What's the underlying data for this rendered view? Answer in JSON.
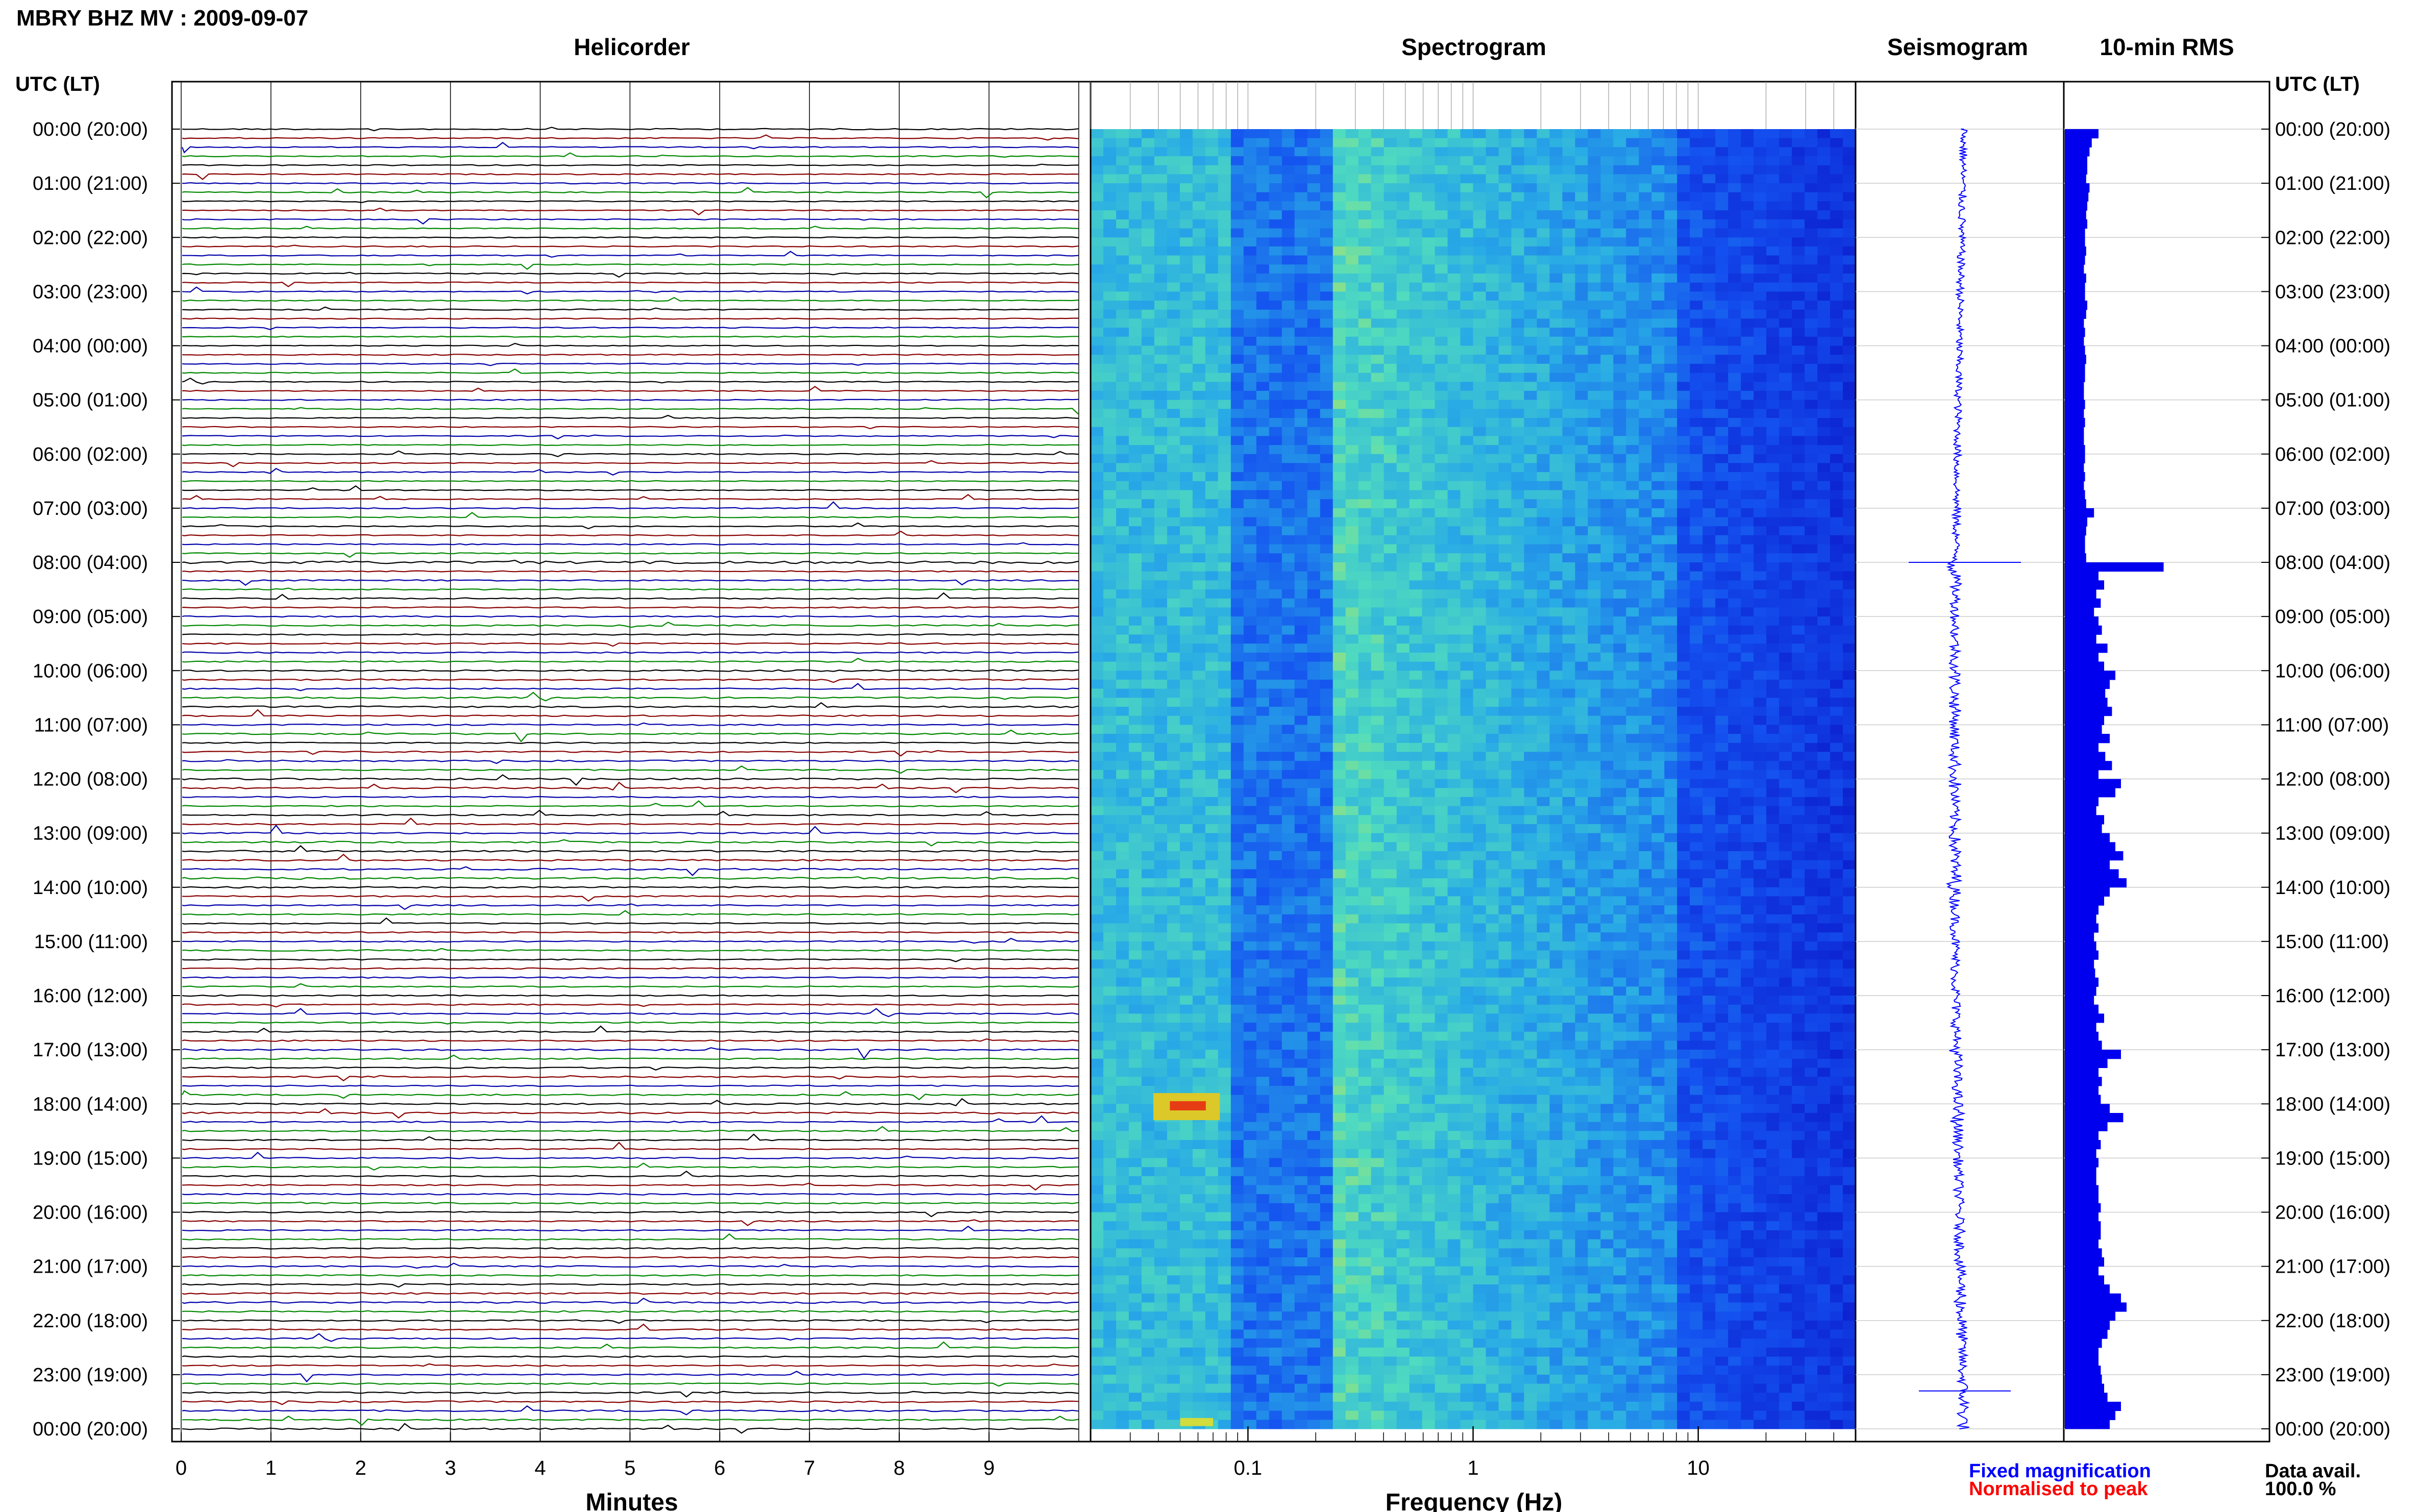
{
  "header": {
    "title": "MBRY BHZ MV : 2009-09-07",
    "utc_label_left": "UTC (LT)",
    "utc_label_right": "UTC (LT)"
  },
  "panels": {
    "helicorder": "Helicorder",
    "spectrogram": "Spectrogram",
    "seismogram": "Seismogram",
    "rms": "10-min RMS"
  },
  "axes": {
    "minutes_label": "Minutes",
    "frequency_label": "Frequency (Hz)",
    "minute_ticks": [
      "0",
      "1",
      "2",
      "3",
      "4",
      "5",
      "6",
      "7",
      "8",
      "9"
    ],
    "frequency_ticks": [
      "0.1",
      "1",
      "10"
    ],
    "time_ticks": [
      "00:00 (20:00)",
      "01:00 (21:00)",
      "02:00 (22:00)",
      "03:00 (23:00)",
      "04:00 (00:00)",
      "05:00 (01:00)",
      "06:00 (02:00)",
      "07:00 (03:00)",
      "08:00 (04:00)",
      "09:00 (05:00)",
      "10:00 (06:00)",
      "11:00 (07:00)",
      "12:00 (08:00)",
      "13:00 (09:00)",
      "14:00 (10:00)",
      "15:00 (11:00)",
      "16:00 (12:00)",
      "17:00 (13:00)",
      "18:00 (14:00)",
      "19:00 (15:00)",
      "20:00 (16:00)",
      "21:00 (17:00)",
      "22:00 (18:00)",
      "23:00 (19:00)",
      "00:00 (20:00)"
    ]
  },
  "legend": {
    "fixed": "Fixed magnification",
    "normalised": "Normalised to peak",
    "fixed_color": "#0000ff",
    "normalised_color": "#ff0000"
  },
  "availability": {
    "label": "Data avail.",
    "value": "100.0 %"
  },
  "colors": {
    "trace_cycle": [
      "#000000",
      "#880000",
      "#0000aa",
      "#008800"
    ],
    "rms_bar": "#0000ee",
    "seismogram": "#0000ff"
  },
  "chart_data": {
    "type": "bar",
    "title": "10-min RMS",
    "x_hours_utc": [
      0,
      0.167,
      0.333,
      0.5,
      0.667,
      0.833,
      1,
      1.167,
      1.333,
      1.5,
      1.667,
      1.833,
      2,
      2.167,
      2.333,
      2.5,
      2.667,
      2.833,
      3,
      3.167,
      3.333,
      3.5,
      3.667,
      3.833,
      4,
      4.167,
      4.333,
      4.5,
      4.667,
      4.833,
      5,
      5.167,
      5.333,
      5.5,
      5.667,
      5.833,
      6,
      6.167,
      6.333,
      6.5,
      6.667,
      6.833,
      7,
      7.167,
      7.333,
      7.5,
      7.667,
      7.833,
      8,
      8.167,
      8.333,
      8.5,
      8.667,
      8.833,
      9,
      9.167,
      9.333,
      9.5,
      9.667,
      9.833,
      10,
      10.167,
      10.333,
      10.5,
      10.667,
      10.833,
      11,
      11.167,
      11.333,
      11.5,
      11.667,
      11.833,
      12,
      12.167,
      12.333,
      12.5,
      12.667,
      12.833,
      13,
      13.167,
      13.333,
      13.5,
      13.667,
      13.833,
      14,
      14.167,
      14.333,
      14.5,
      14.667,
      14.833,
      15,
      15.167,
      15.333,
      15.5,
      15.667,
      15.833,
      16,
      16.167,
      16.333,
      16.5,
      16.667,
      16.833,
      17,
      17.167,
      17.333,
      17.5,
      17.667,
      17.833,
      18,
      18.167,
      18.333,
      18.5,
      18.667,
      18.833,
      19,
      19.167,
      19.333,
      19.5,
      19.667,
      19.833,
      20,
      20.167,
      20.333,
      20.5,
      20.667,
      20.833,
      21,
      21.167,
      21.333,
      21.5,
      21.667,
      21.833,
      22,
      22.167,
      22.333,
      22.5,
      22.667,
      22.833,
      23,
      23.167,
      23.333,
      23.5,
      23.667,
      23.833
    ],
    "values": [
      0.3,
      0.24,
      0.22,
      0.2,
      0.2,
      0.19,
      0.22,
      0.21,
      0.2,
      0.19,
      0.2,
      0.18,
      0.18,
      0.19,
      0.18,
      0.17,
      0.19,
      0.18,
      0.18,
      0.2,
      0.19,
      0.17,
      0.18,
      0.17,
      0.18,
      0.19,
      0.18,
      0.18,
      0.17,
      0.17,
      0.18,
      0.17,
      0.18,
      0.17,
      0.17,
      0.18,
      0.18,
      0.17,
      0.18,
      0.17,
      0.18,
      0.19,
      0.26,
      0.2,
      0.19,
      0.18,
      0.18,
      0.19,
      0.88,
      0.3,
      0.35,
      0.28,
      0.32,
      0.26,
      0.3,
      0.33,
      0.28,
      0.38,
      0.3,
      0.35,
      0.45,
      0.4,
      0.36,
      0.38,
      0.42,
      0.35,
      0.33,
      0.4,
      0.3,
      0.36,
      0.42,
      0.3,
      0.5,
      0.45,
      0.3,
      0.28,
      0.35,
      0.33,
      0.4,
      0.45,
      0.52,
      0.4,
      0.48,
      0.55,
      0.4,
      0.35,
      0.3,
      0.28,
      0.3,
      0.26,
      0.28,
      0.3,
      0.26,
      0.27,
      0.3,
      0.28,
      0.26,
      0.3,
      0.35,
      0.28,
      0.3,
      0.33,
      0.5,
      0.38,
      0.3,
      0.33,
      0.3,
      0.32,
      0.4,
      0.52,
      0.38,
      0.3,
      0.32,
      0.28,
      0.3,
      0.28,
      0.28,
      0.3,
      0.3,
      0.32,
      0.3,
      0.32,
      0.32,
      0.3,
      0.33,
      0.35,
      0.3,
      0.35,
      0.4,
      0.5,
      0.55,
      0.45,
      0.4,
      0.38,
      0.33,
      0.3,
      0.3,
      0.32,
      0.33,
      0.35,
      0.38,
      0.5,
      0.45,
      0.4
    ],
    "xlabel": "",
    "ylabel": "",
    "spectrogram_frequency_range_hz": [
      0.02,
      50
    ],
    "helicorder_minutes_range": [
      0,
      10
    ],
    "lines_per_hour": 6,
    "grid": true
  }
}
